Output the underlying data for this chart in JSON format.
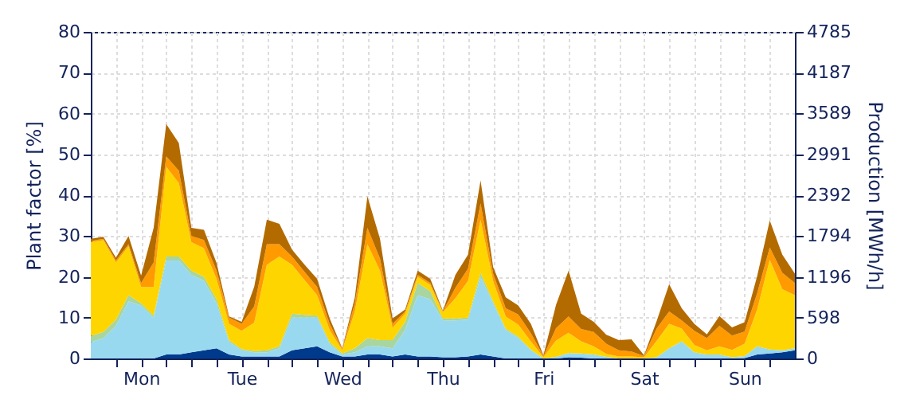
{
  "chart_data": {
    "type": "area",
    "stacked": true,
    "grid": true,
    "ylabel": "Plant factor [%]",
    "y2label": "Production [MWh/h]",
    "categories": [
      null,
      null,
      null,
      null,
      "Mon",
      null,
      null,
      null,
      null,
      null,
      null,
      null,
      "Tue",
      null,
      null,
      null,
      null,
      null,
      null,
      null,
      "Wed",
      null,
      null,
      null,
      null,
      null,
      null,
      null,
      "Thu",
      null,
      null,
      null,
      null,
      null,
      null,
      null,
      "Fri",
      null,
      null,
      null,
      null,
      null,
      null,
      null,
      "Sat",
      null,
      null,
      null,
      null,
      null,
      null,
      null,
      "Sun",
      null,
      null,
      null,
      null
    ],
    "ylim": [
      0,
      80
    ],
    "yticks": [
      0,
      10,
      20,
      30,
      40,
      50,
      60,
      70,
      80
    ],
    "y2lim": [
      0,
      4785
    ],
    "y2ticks": [
      0,
      598,
      1196,
      1794,
      2392,
      2991,
      3589,
      4187,
      4785
    ],
    "series": [
      {
        "color": "#003a8c",
        "values": [
          0,
          0,
          0,
          0,
          0,
          0,
          1,
          1,
          1.5,
          2,
          2.5,
          1,
          0.5,
          0.5,
          0.5,
          0.5,
          2,
          2.5,
          3,
          1.5,
          0.5,
          0.5,
          1,
          1,
          0.5,
          1,
          0.5,
          0.5,
          0.3,
          0.3,
          0.5,
          1,
          0.5,
          0,
          0,
          0,
          0,
          0,
          0.3,
          0.2,
          0,
          0,
          0,
          0,
          0,
          0,
          0,
          0,
          0,
          0,
          0,
          0,
          0.1,
          1,
          1.2,
          1.5,
          2
        ]
      },
      {
        "color": "#99d9f0",
        "values": [
          4,
          5,
          8,
          14,
          13,
          10,
          23,
          23,
          19,
          17,
          11,
          3,
          1.5,
          1,
          1,
          2,
          8,
          7.5,
          7,
          2,
          0.5,
          1,
          2,
          2,
          2,
          6,
          15,
          14,
          9,
          9,
          9,
          19,
          13,
          7,
          5,
          2,
          0,
          0.4,
          1,
          1,
          1,
          0.4,
          0,
          0,
          0,
          0.3,
          2.5,
          4,
          1.5,
          1,
          1,
          0.3,
          0.5,
          2,
          1,
          0.5,
          0.5
        ]
      },
      {
        "color": "#a8d5a0",
        "values": [
          1.5,
          1.5,
          1.5,
          1.5,
          0.5,
          0.5,
          1,
          1,
          1,
          1,
          1,
          0.5,
          0.3,
          0.3,
          0.5,
          0.5,
          1,
          0.7,
          0.5,
          0.5,
          0.2,
          1,
          2,
          1.5,
          2,
          2,
          3,
          2,
          0.5,
          0.5,
          0.5,
          1,
          0.5,
          0.3,
          0.3,
          0.2,
          0,
          0,
          0,
          0,
          0,
          0,
          0,
          0,
          0,
          0,
          0,
          0.3,
          0,
          0,
          0,
          0,
          0,
          0,
          0,
          0,
          0
        ]
      },
      {
        "color": "#ffd500",
        "values": [
          23,
          22.5,
          14,
          12,
          4,
          7,
          22,
          18,
          7,
          7,
          5,
          4,
          4.5,
          7,
          21,
          22,
          12,
          8.5,
          5,
          3,
          0.8,
          9,
          23,
          17,
          3,
          2,
          1.5,
          1.5,
          1.5,
          5,
          9,
          13,
          5,
          3,
          3,
          2,
          0.3,
          4,
          5,
          3,
          2,
          0.7,
          0.5,
          0.5,
          0.3,
          4,
          6,
          3,
          1.8,
          1,
          2,
          1.8,
          3,
          9,
          22,
          15,
          13
        ]
      },
      {
        "color": "#ff9a00",
        "values": [
          0.3,
          0.3,
          0.5,
          0.5,
          1,
          6,
          2.5,
          3,
          1.5,
          2,
          2,
          1.5,
          1.7,
          4,
          5,
          3,
          2,
          2,
          2,
          1.5,
          0.3,
          2,
          4,
          3,
          1,
          0.5,
          0.5,
          0.5,
          0.2,
          2.5,
          3,
          4,
          1.8,
          2,
          2.5,
          2,
          0.3,
          3,
          4,
          3,
          3.5,
          2.5,
          1.5,
          1.2,
          0.3,
          3,
          3,
          2,
          3.5,
          3,
          5,
          3.5,
          3,
          4,
          3,
          4,
          3
        ]
      },
      {
        "color": "#b36b00",
        "values": [
          0.5,
          0.5,
          0.7,
          2,
          1.8,
          8.5,
          7.9,
          6.8,
          2,
          2.5,
          1.9,
          0.3,
          0.5,
          4.8,
          6,
          5,
          1.7,
          1.8,
          2,
          1.3,
          0.2,
          1.5,
          7.7,
          4.8,
          1.3,
          0.5,
          1,
          1,
          0.2,
          3.2,
          3.4,
          5.6,
          1.6,
          2.7,
          2.2,
          2.3,
          0.2,
          5.7,
          11.2,
          3.8,
          2.5,
          2.2,
          2.5,
          3,
          0.2,
          1.8,
          6.7,
          3,
          1.7,
          0.9,
          2.4,
          2,
          2.3,
          4.2,
          6.6,
          4.4,
          2.3
        ]
      }
    ]
  }
}
